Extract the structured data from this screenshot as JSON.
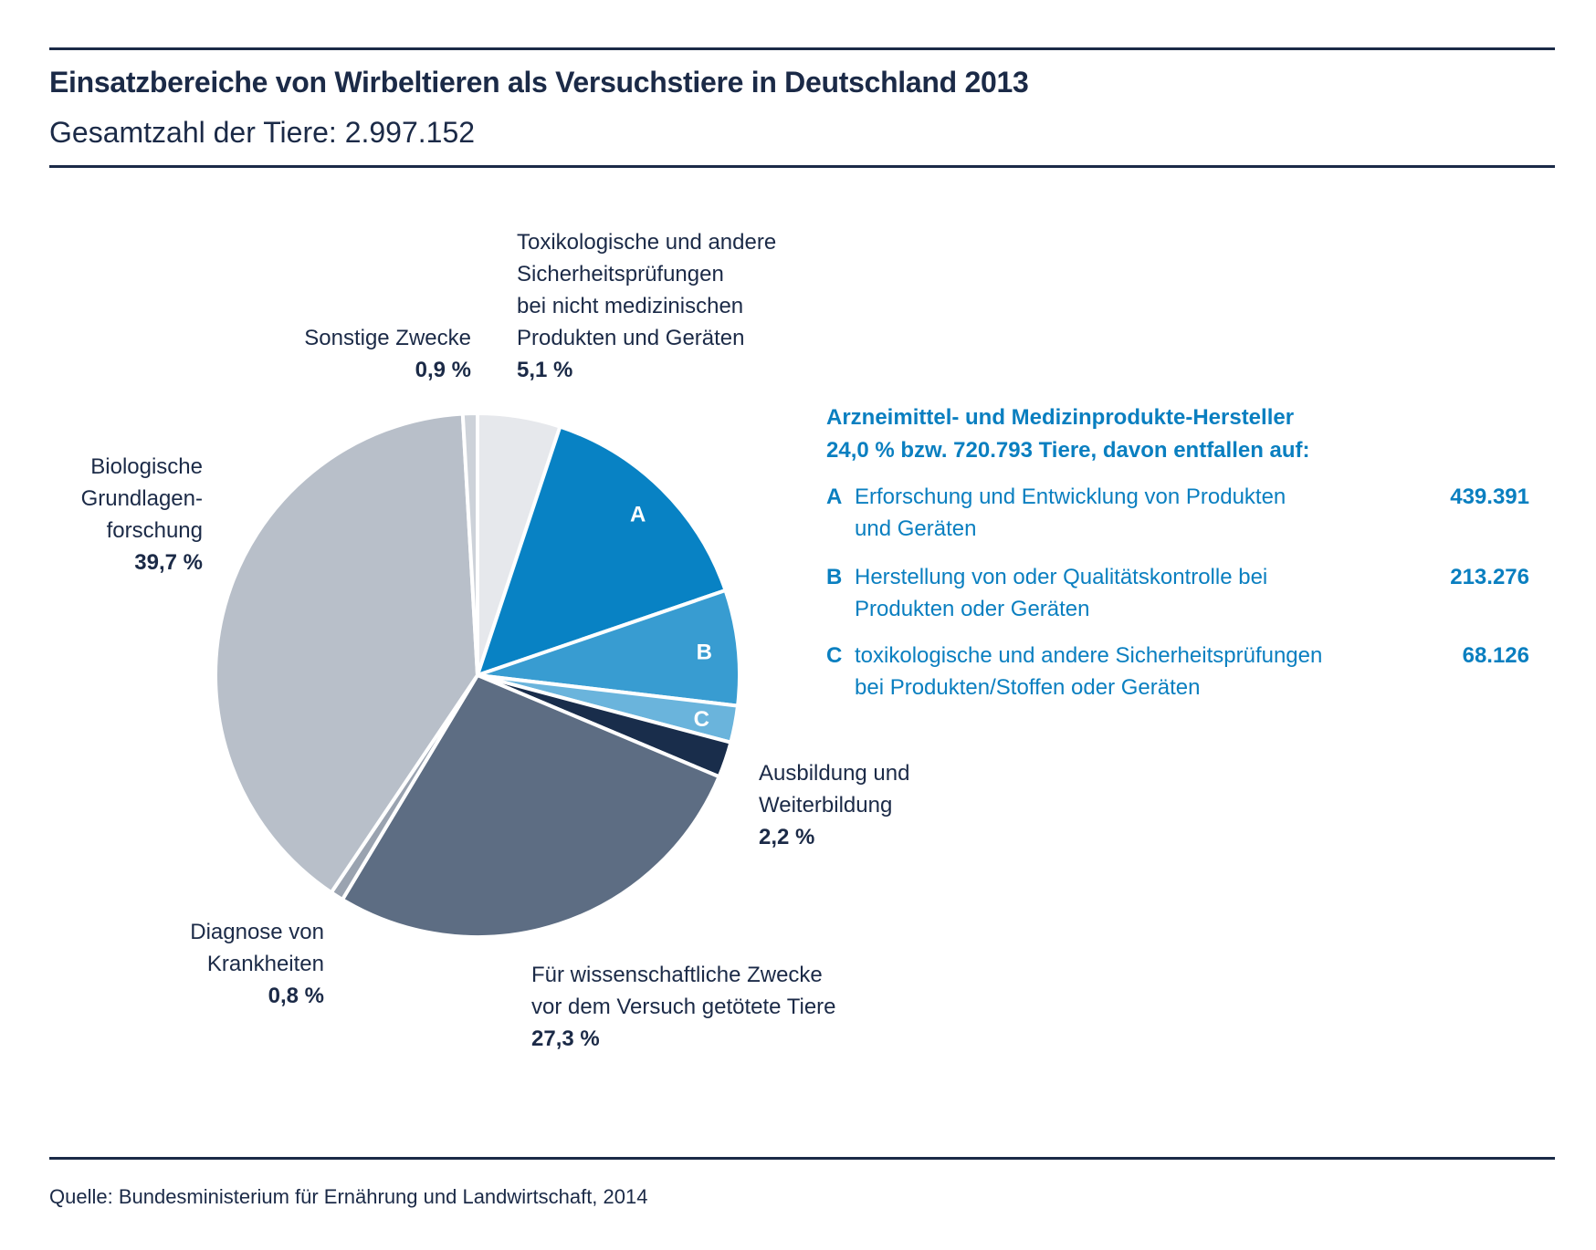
{
  "header": {
    "title": "Einsatzbereiche von Wirbeltieren als Versuchstiere in Deutschland 2013",
    "subtitle": "Gesamtzahl der Tiere: 2.997.152"
  },
  "footer": {
    "source": "Quelle: Bundesministerium für Ernährung und Landwirtschaft, 2014"
  },
  "labels": {
    "tox": {
      "lines": [
        "Toxikologische und andere",
        "Sicherheitsprüfungen",
        "bei nicht medizinischen",
        "Produkten und Geräten"
      ],
      "pct": "5,1 %"
    },
    "sonstige": {
      "lines": [
        "Sonstige Zwecke"
      ],
      "pct": "0,9 %"
    },
    "bio": {
      "lines": [
        "Biologische",
        "Grundlagen-",
        "forschung"
      ],
      "pct": "39,7 %"
    },
    "ausbildung": {
      "lines": [
        "Ausbildung und",
        "Weiterbildung"
      ],
      "pct": "2,2 %"
    },
    "diagnose": {
      "lines": [
        "Diagnose von",
        "Krankheiten"
      ],
      "pct": "0,8 %"
    },
    "wiss": {
      "lines": [
        "Für wissenschaftliche Zwecke",
        "vor dem Versuch getötete Tiere"
      ],
      "pct": "27,3 %"
    }
  },
  "panel": {
    "heading1": "Arzneimittel- und Medizinprodukte-Hersteller",
    "heading2": "24,0 % bzw. 720.793 Tiere, davon entfallen auf:",
    "items": [
      {
        "letter": "A",
        "lines": [
          "Erforschung und Entwicklung von Produkten",
          "und Geräten"
        ],
        "value": "439.391"
      },
      {
        "letter": "B",
        "lines": [
          "Herstellung von oder Qualitätskontrolle bei",
          "Produkten oder Geräten"
        ],
        "value": "213.276"
      },
      {
        "letter": "C",
        "lines": [
          "toxikologische und andere Sicherheitsprüfungen",
          "bei Produkten/Stoffen oder Geräten"
        ],
        "value": "68.126"
      }
    ]
  },
  "chart_data": {
    "type": "pie",
    "title": "Einsatzbereiche von Wirbeltieren als Versuchstiere in Deutschland 2013",
    "subtitle": "Gesamtzahl der Tiere: 2.997.152",
    "total": 2997152,
    "start": "top",
    "direction": "clockwise",
    "slices": [
      {
        "key": "tox",
        "label": "Toxikologische und andere Sicherheitsprüfungen bei nicht medizinischen Produkten und Geräten",
        "value": 5.1,
        "color": "#e6e8ec"
      },
      {
        "key": "A",
        "label": "A",
        "value": 14.66,
        "count": 439391,
        "color": "#0882c4"
      },
      {
        "key": "B",
        "label": "B",
        "value": 7.12,
        "count": 213276,
        "color": "#389cd1"
      },
      {
        "key": "C",
        "label": "C",
        "value": 2.27,
        "count": 68126,
        "color": "#6ab4dc"
      },
      {
        "key": "ausbildung",
        "label": "Ausbildung und Weiterbildung",
        "value": 2.2,
        "color": "#192d4b"
      },
      {
        "key": "wiss",
        "label": "Für wissenschaftliche Zwecke vor dem Versuch getötete Tiere",
        "value": 27.3,
        "color": "#5d6d83"
      },
      {
        "key": "diagnose",
        "label": "Diagnose von Krankheiten",
        "value": 0.8,
        "color": "#9aa3b0"
      },
      {
        "key": "bio",
        "label": "Biologische Grundlagenforschung",
        "value": 39.7,
        "color": "#b8bfc9"
      },
      {
        "key": "sonstige",
        "label": "Sonstige Zwecke",
        "value": 0.9,
        "color": "#cdd2d9"
      }
    ]
  }
}
